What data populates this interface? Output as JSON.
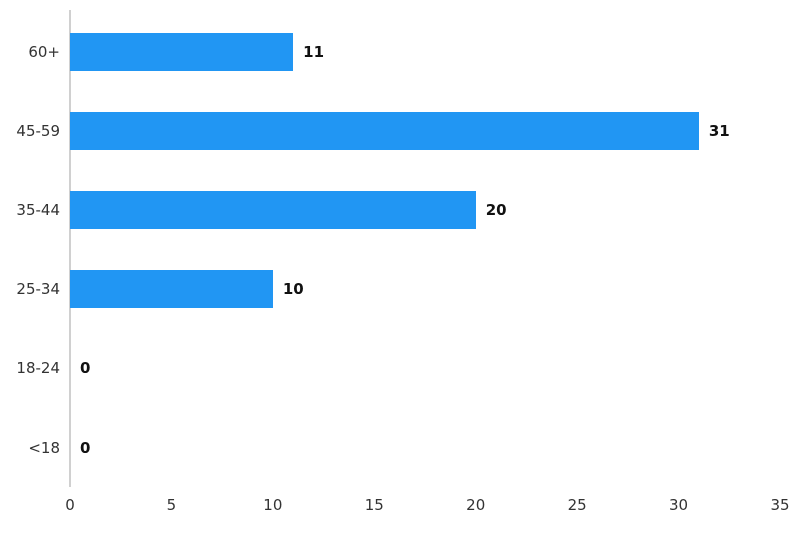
{
  "chart_data": {
    "type": "bar",
    "orientation": "horizontal",
    "title": "",
    "xlabel": "",
    "ylabel": "",
    "categories": [
      "60+",
      "45-59",
      "35-44",
      "25-34",
      "18-24",
      "<18"
    ],
    "values": [
      11,
      31,
      20,
      10,
      0,
      0
    ],
    "value_labels": [
      "11",
      "31",
      "20",
      "10",
      "0",
      "0"
    ],
    "x_ticks": [
      "0",
      "5",
      "10",
      "15",
      "20",
      "25",
      "30",
      "35"
    ],
    "x_tick_values": [
      0,
      5,
      10,
      15,
      20,
      25,
      30,
      35
    ],
    "xlim": [
      0,
      35
    ],
    "grid": false,
    "legend": false,
    "colors": {
      "bar": "#2196f3",
      "axis_line": "#d0d0d0",
      "tick_label": "#333333",
      "category_label": "#333333",
      "value_label": "#111111",
      "background": "#ffffff"
    }
  }
}
